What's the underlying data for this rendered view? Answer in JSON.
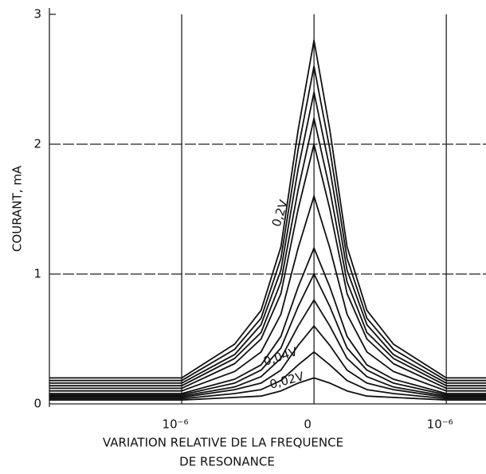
{
  "chart_data": {
    "type": "line",
    "ylabel": "COURANT, mA",
    "xlabel": [
      "VARIATION RELATIVE DE LA FREQUENCE",
      "DE RESONANCE"
    ],
    "x": [
      -2,
      -1,
      -0.6,
      -0.4,
      -0.25,
      -0.12,
      0,
      0.12,
      0.25,
      0.4,
      0.6,
      1,
      1.3
    ],
    "xlim": [
      -2,
      1.3
    ],
    "xticks": [
      {
        "value": -1,
        "label": "10⁻⁶"
      },
      0,
      {
        "value": 1,
        "label": "10⁻⁶"
      }
    ],
    "ylim": [
      0,
      3
    ],
    "yticks": [
      0,
      1,
      2,
      3
    ],
    "grid": true,
    "series": [
      {
        "color": "#111",
        "values": [
          0.03,
          0.03,
          0.05,
          0.06,
          0.1,
          0.16,
          0.2,
          0.16,
          0.1,
          0.06,
          0.05,
          0.03,
          0.03
        ]
      },
      {
        "color": "#111",
        "values": [
          0.04,
          0.04,
          0.08,
          0.11,
          0.18,
          0.3,
          0.4,
          0.3,
          0.18,
          0.11,
          0.08,
          0.04,
          0.04
        ]
      },
      {
        "color": "#111",
        "values": [
          0.05,
          0.05,
          0.11,
          0.16,
          0.26,
          0.45,
          0.6,
          0.45,
          0.26,
          0.16,
          0.11,
          0.05,
          0.05
        ]
      },
      {
        "color": "#111",
        "values": [
          0.06,
          0.06,
          0.13,
          0.21,
          0.35,
          0.6,
          0.8,
          0.6,
          0.35,
          0.21,
          0.13,
          0.06,
          0.06
        ]
      },
      {
        "color": "#111",
        "values": [
          0.07,
          0.07,
          0.16,
          0.26,
          0.43,
          0.75,
          1.0,
          0.75,
          0.43,
          0.26,
          0.16,
          0.07,
          0.07
        ]
      },
      {
        "color": "#111",
        "values": [
          0.08,
          0.08,
          0.19,
          0.3,
          0.52,
          0.9,
          1.2,
          0.9,
          0.52,
          0.3,
          0.19,
          0.08,
          0.08
        ]
      },
      {
        "color": "#111",
        "values": [
          0.1,
          0.1,
          0.25,
          0.4,
          0.69,
          1.2,
          1.6,
          1.2,
          0.69,
          0.4,
          0.25,
          0.1,
          0.1
        ]
      },
      {
        "color": "#111",
        "values": [
          0.12,
          0.12,
          0.31,
          0.5,
          0.85,
          1.5,
          2.0,
          1.5,
          0.85,
          0.5,
          0.31,
          0.12,
          0.12
        ]
      },
      {
        "color": "#111",
        "values": [
          0.14,
          0.14,
          0.35,
          0.55,
          0.94,
          1.65,
          2.2,
          1.65,
          0.94,
          0.55,
          0.35,
          0.14,
          0.14
        ]
      },
      {
        "color": "#111",
        "values": [
          0.16,
          0.16,
          0.38,
          0.61,
          1.03,
          1.81,
          2.4,
          1.81,
          1.03,
          0.61,
          0.38,
          0.16,
          0.16
        ]
      },
      {
        "color": "#111",
        "values": [
          0.18,
          0.18,
          0.42,
          0.66,
          1.12,
          1.96,
          2.6,
          1.96,
          1.12,
          0.66,
          0.42,
          0.18,
          0.18
        ]
      },
      {
        "color": "#111",
        "values": [
          0.2,
          0.2,
          0.46,
          0.72,
          1.21,
          2.11,
          2.8,
          2.11,
          1.21,
          0.72,
          0.46,
          0.2,
          0.2
        ]
      }
    ],
    "annotations": [
      "0,2V",
      "0,04V",
      "0,02V"
    ]
  }
}
